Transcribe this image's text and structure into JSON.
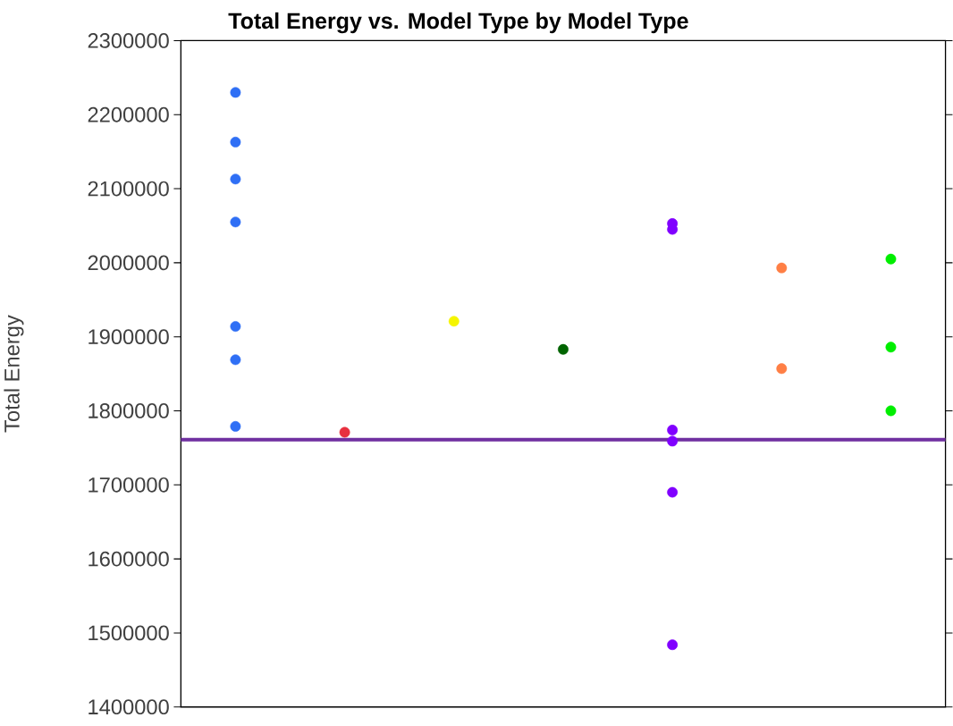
{
  "chart_data": {
    "type": "scatter",
    "title": "Total Energy vs. Model Type by Model Type",
    "ylabel": "Total Energy",
    "categories": [
      null,
      null,
      null,
      null,
      null,
      null,
      null
    ],
    "ylim": [
      1400000,
      2300000
    ],
    "yticks": [
      1400000,
      1500000,
      1600000,
      1700000,
      1800000,
      1900000,
      2000000,
      2100000,
      2200000,
      2300000
    ],
    "tick_labels": "y",
    "marker": "circle",
    "series": [
      {
        "colors": [
          "#2f6ff5",
          "#e8303f",
          "#f5f500",
          "#006400",
          "#8000ff",
          "#ff7f45",
          "#00ee00"
        ],
        "values": [
          2230000,
          1771000,
          1921000,
          1883000,
          2053000,
          1993000,
          2005000
        ]
      },
      {
        "colors": [
          "#2f6ff5",
          "#e8303f",
          "#f5f500",
          "#006400",
          "#8000ff",
          "#ff7f45",
          "#00ee00"
        ],
        "values": [
          2163000,
          null,
          null,
          null,
          2045000,
          1857000,
          1886000
        ]
      },
      {
        "colors": [
          "#2f6ff5",
          "#e8303f",
          "#f5f500",
          "#006400",
          "#8000ff",
          "#ff7f45",
          "#00ee00"
        ],
        "values": [
          2113000,
          null,
          null,
          null,
          1774000,
          null,
          1800000
        ]
      },
      {
        "colors": [
          "#2f6ff5",
          "#e8303f",
          "#f5f500",
          "#006400",
          "#8000ff",
          "#ff7f45",
          "#00ee00"
        ],
        "values": [
          2055000,
          null,
          null,
          null,
          1759000,
          null,
          null
        ]
      },
      {
        "colors": [
          "#2f6ff5",
          "#e8303f",
          "#f5f500",
          "#006400",
          "#8000ff",
          "#ff7f45",
          "#00ee00"
        ],
        "values": [
          1914000,
          null,
          null,
          null,
          1690000,
          null,
          null
        ]
      },
      {
        "colors": [
          "#2f6ff5",
          "#e8303f",
          "#f5f500",
          "#006400",
          "#8000ff",
          "#ff7f45",
          "#00ee00"
        ],
        "values": [
          1869000,
          null,
          null,
          null,
          1484000,
          null,
          null
        ]
      },
      {
        "colors": [
          "#2f6ff5",
          "#e8303f",
          "#f5f500",
          "#006400",
          "#8000ff",
          "#ff7f45",
          "#00ee00"
        ],
        "values": [
          1779000,
          null,
          null,
          null,
          null,
          null,
          null
        ]
      }
    ],
    "ref_lines": [
      {
        "axis": "y",
        "value": 1761000,
        "color": "#7030a0"
      }
    ]
  }
}
